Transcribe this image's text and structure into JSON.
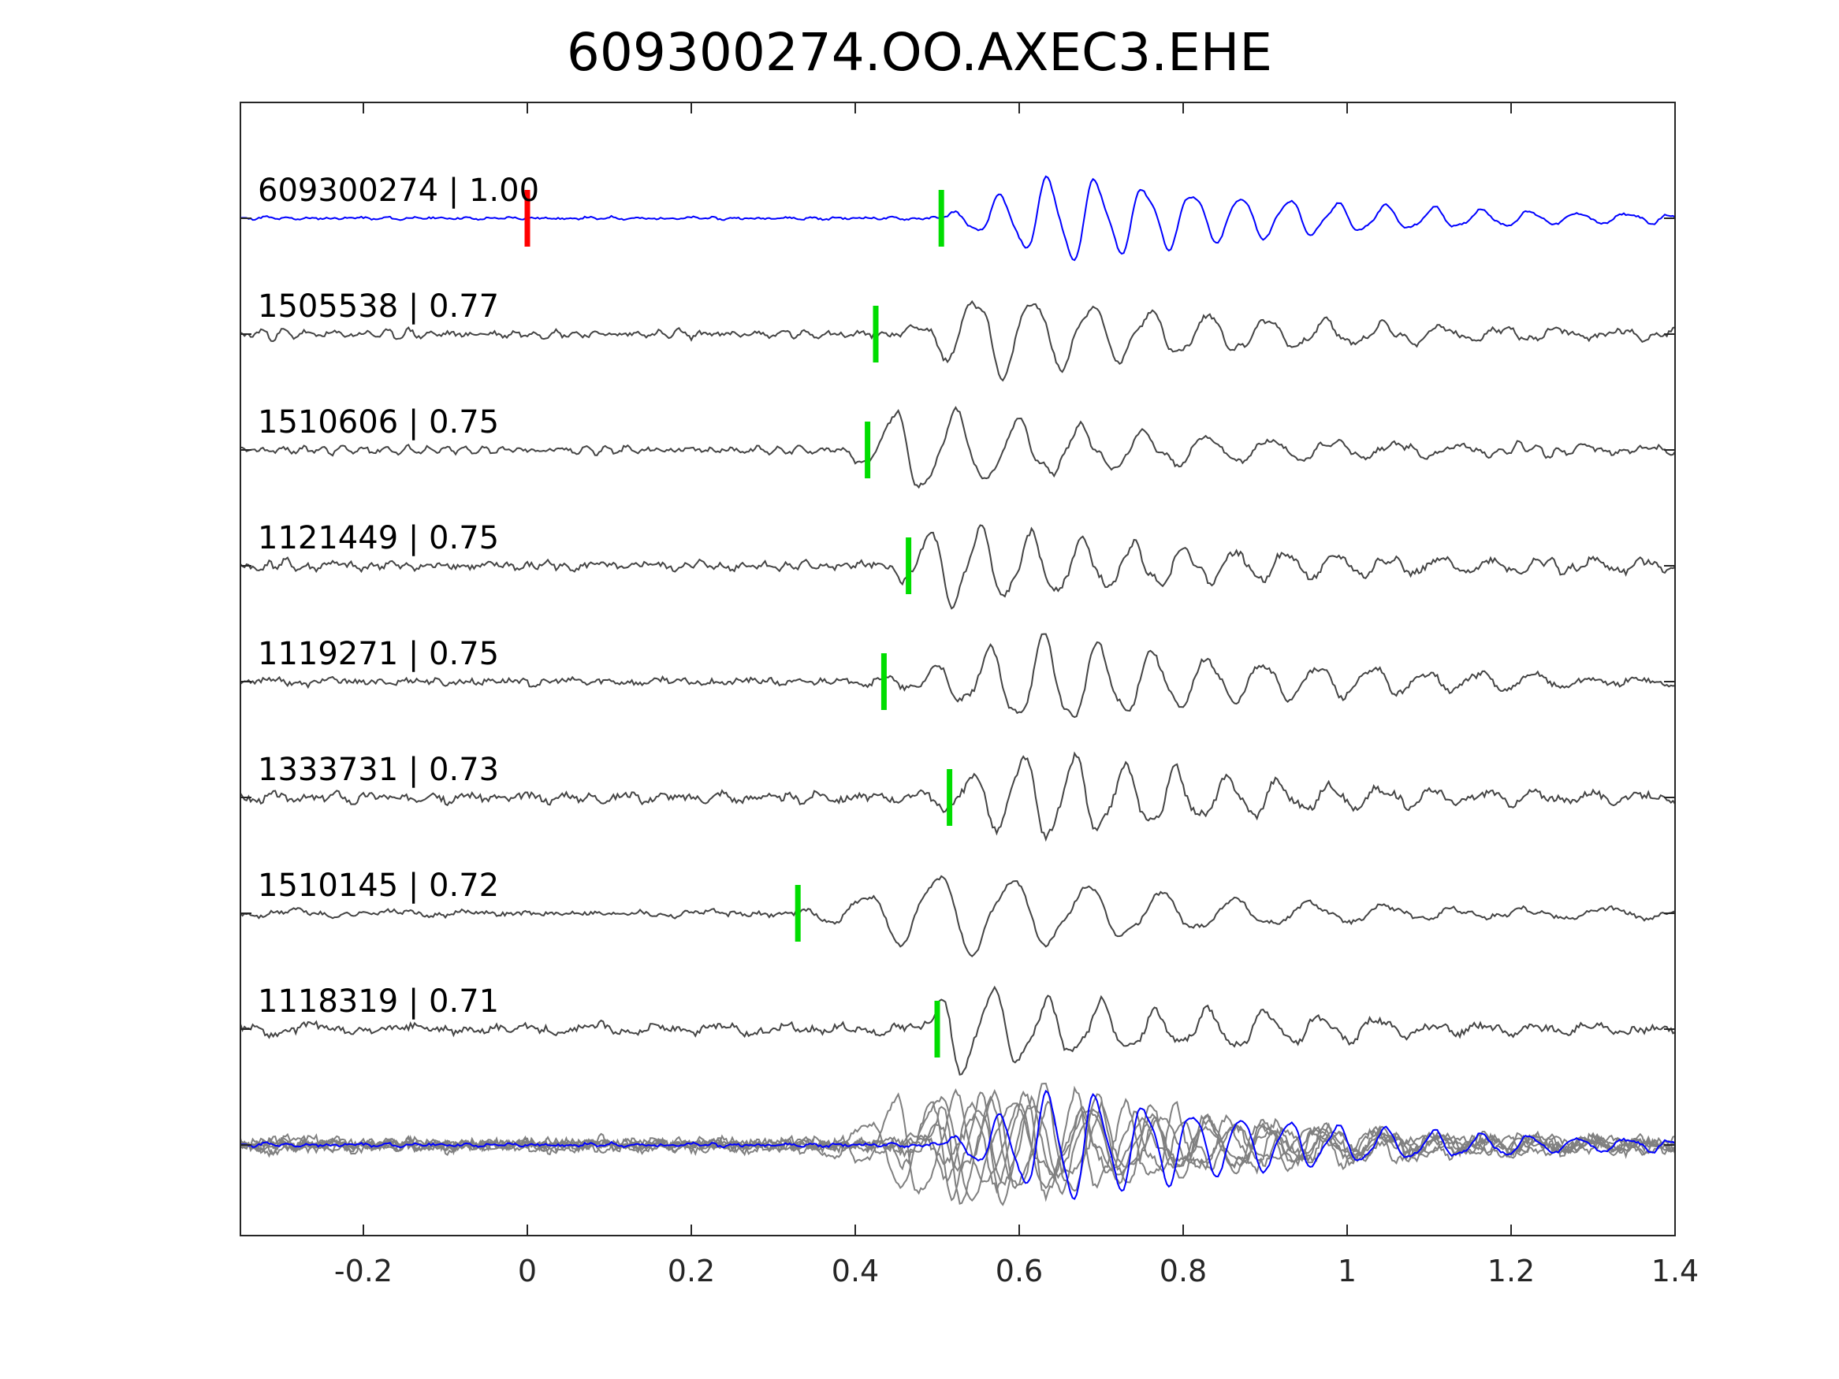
{
  "chart_data": {
    "type": "line",
    "title": "609300274.OO.AXEC3.EHE",
    "xlabel": "",
    "ylabel": "",
    "xlim": [
      -0.35,
      1.4
    ],
    "x_ticks": [
      -0.2,
      0,
      0.2,
      0.4,
      0.6,
      0.8,
      1,
      1.2,
      1.4
    ],
    "x_tick_labels": [
      "-0.2",
      "0",
      "0.2",
      "0.4",
      "0.6",
      "0.8",
      "1",
      "1.2",
      "1.4"
    ],
    "grid": false,
    "colors": {
      "template": "#0000ff",
      "trace": "#444444",
      "stack": "#808080",
      "origin_marker": "#ff0000",
      "pick_marker": "#00dd00",
      "axes": "#262626"
    },
    "series": [
      {
        "label": "609300274 | 1.00",
        "role": "template",
        "correlation": 1.0,
        "origin_time": 0.0,
        "pick_time": 0.505,
        "onset": 0.5,
        "peak_time": 0.635,
        "freq": 17,
        "noise": 0.1,
        "seed": 11
      },
      {
        "label": "1505538 | 0.77",
        "role": "event",
        "correlation": 0.77,
        "pick_time": 0.425,
        "onset": 0.45,
        "peak_time": 0.545,
        "freq": 14,
        "noise": 0.25,
        "seed": 23
      },
      {
        "label": "1510606 | 0.75",
        "role": "event",
        "correlation": 0.75,
        "pick_time": 0.415,
        "onset": 0.38,
        "peak_time": 0.445,
        "freq": 13,
        "noise": 0.22,
        "seed": 37
      },
      {
        "label": "1121449 | 0.75",
        "role": "event",
        "correlation": 0.75,
        "pick_time": 0.465,
        "onset": 0.43,
        "peak_time": 0.49,
        "freq": 16,
        "noise": 0.35,
        "seed": 41
      },
      {
        "label": "1119271 | 0.75",
        "role": "event",
        "correlation": 0.75,
        "pick_time": 0.435,
        "onset": 0.41,
        "peak_time": 0.63,
        "freq": 15,
        "noise": 0.3,
        "seed": 53
      },
      {
        "label": "1333731 | 0.73",
        "role": "event",
        "correlation": 0.73,
        "pick_time": 0.515,
        "onset": 0.47,
        "peak_time": 0.605,
        "freq": 16,
        "noise": 0.38,
        "seed": 67
      },
      {
        "label": "1510145 | 0.72",
        "role": "event",
        "correlation": 0.72,
        "pick_time": 0.33,
        "onset": 0.33,
        "peak_time": 0.5,
        "freq": 11,
        "noise": 0.22,
        "seed": 71
      },
      {
        "label": "1118319 | 0.71",
        "role": "event",
        "correlation": 0.71,
        "pick_time": 0.5,
        "onset": 0.47,
        "peak_time": 0.5,
        "freq": 15,
        "noise": 0.35,
        "seed": 89
      }
    ],
    "stack": {
      "role": "overlay",
      "description_label": ""
    }
  }
}
